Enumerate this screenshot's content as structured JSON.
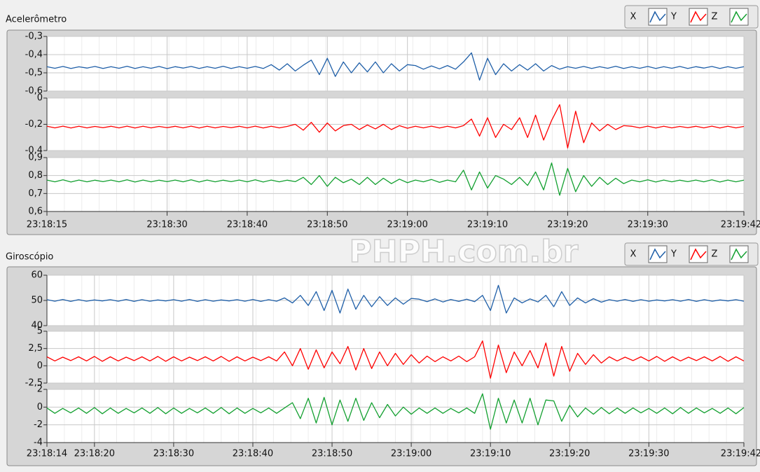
{
  "chart_data": [
    {
      "type": "line",
      "title": "Acelerômetro",
      "x": [
        83895,
        83896,
        83897,
        83898,
        83899,
        83900,
        83901,
        83902,
        83903,
        83904,
        83905,
        83906,
        83907,
        83908,
        83909,
        83910,
        83911,
        83912,
        83913,
        83914,
        83915,
        83916,
        83917,
        83918,
        83919,
        83920,
        83921,
        83922,
        83923,
        83924,
        83925,
        83926,
        83927,
        83928,
        83929,
        83930,
        83931,
        83932,
        83933,
        83934,
        83935,
        83936,
        83937,
        83938,
        83939,
        83940,
        83941,
        83942,
        83943,
        83944,
        83945,
        83946,
        83947,
        83948,
        83949,
        83950,
        83951,
        83952,
        83953,
        83954,
        83955,
        83956,
        83957,
        83958,
        83959,
        83960,
        83961,
        83962,
        83963,
        83964,
        83965,
        83966,
        83967,
        83968,
        83969,
        83970,
        83971,
        83972,
        83973,
        83974,
        83975,
        83976,
        83977,
        83978,
        83979,
        83980,
        83981,
        83982
      ],
      "xlim": [
        83895,
        83982
      ],
      "xticks": [
        {
          "value": 83895,
          "label": "23:18:15"
        },
        {
          "value": 83910,
          "label": "23:18:30"
        },
        {
          "value": 83920,
          "label": "23:18:40"
        },
        {
          "value": 83930,
          "label": "23:18:50"
        },
        {
          "value": 83940,
          "label": "23:19:00"
        },
        {
          "value": 83950,
          "label": "23:19:10"
        },
        {
          "value": 83960,
          "label": "23:19:20"
        },
        {
          "value": 83970,
          "label": "23:19:30"
        },
        {
          "value": 83982,
          "label": "23:19:42"
        }
      ],
      "grid": true,
      "panels": [
        {
          "ylim": [
            -0.6,
            -0.3
          ],
          "yticks": [
            {
              "value": -0.3,
              "label": "-0,3"
            },
            {
              "value": -0.4,
              "label": "-0,4"
            },
            {
              "value": -0.5,
              "label": "-0,5"
            },
            {
              "value": -0.6,
              "label": "-0,6"
            }
          ],
          "series": [
            {
              "name": "X",
              "color": "#1f5fa8",
              "values": [
                -0.466,
                -0.475,
                -0.465,
                -0.476,
                -0.467,
                -0.474,
                -0.465,
                -0.476,
                -0.466,
                -0.475,
                -0.464,
                -0.476,
                -0.466,
                -0.475,
                -0.465,
                -0.477,
                -0.466,
                -0.474,
                -0.465,
                -0.476,
                -0.466,
                -0.475,
                -0.464,
                -0.476,
                -0.466,
                -0.475,
                -0.465,
                -0.476,
                -0.455,
                -0.485,
                -0.45,
                -0.49,
                -0.458,
                -0.43,
                -0.51,
                -0.42,
                -0.52,
                -0.44,
                -0.5,
                -0.445,
                -0.495,
                -0.44,
                -0.5,
                -0.45,
                -0.49,
                -0.455,
                -0.46,
                -0.48,
                -0.462,
                -0.478,
                -0.46,
                -0.48,
                -0.44,
                -0.39,
                -0.54,
                -0.42,
                -0.51,
                -0.45,
                -0.49,
                -0.455,
                -0.485,
                -0.45,
                -0.49,
                -0.46,
                -0.48,
                -0.466,
                -0.475,
                -0.465,
                -0.476,
                -0.466,
                -0.475,
                -0.464,
                -0.476,
                -0.466,
                -0.475,
                -0.465,
                -0.476,
                -0.466,
                -0.475,
                -0.465,
                -0.476,
                -0.466,
                -0.474,
                -0.465,
                -0.476,
                -0.466,
                -0.475,
                -0.466
              ]
            }
          ]
        },
        {
          "ylim": [
            -0.4,
            0
          ],
          "yticks": [
            0,
            {
              "value": -0.2,
              "label": "-0,2"
            },
            {
              "value": -0.4,
              "label": "-0,4"
            }
          ],
          "series": [
            {
              "name": "Y",
              "color": "#ff0000",
              "values": [
                -0.215,
                -0.227,
                -0.214,
                -0.228,
                -0.215,
                -0.227,
                -0.216,
                -0.226,
                -0.215,
                -0.227,
                -0.214,
                -0.228,
                -0.215,
                -0.227,
                -0.216,
                -0.226,
                -0.215,
                -0.227,
                -0.214,
                -0.228,
                -0.215,
                -0.227,
                -0.216,
                -0.226,
                -0.215,
                -0.227,
                -0.214,
                -0.228,
                -0.215,
                -0.227,
                -0.216,
                -0.2,
                -0.245,
                -0.185,
                -0.26,
                -0.19,
                -0.25,
                -0.21,
                -0.2,
                -0.24,
                -0.205,
                -0.235,
                -0.2,
                -0.24,
                -0.21,
                -0.23,
                -0.215,
                -0.227,
                -0.214,
                -0.228,
                -0.215,
                -0.227,
                -0.21,
                -0.16,
                -0.29,
                -0.15,
                -0.3,
                -0.2,
                -0.24,
                -0.15,
                -0.3,
                -0.13,
                -0.32,
                -0.17,
                -0.05,
                -0.38,
                -0.1,
                -0.34,
                -0.19,
                -0.25,
                -0.2,
                -0.24,
                -0.21,
                -0.215,
                -0.227,
                -0.214,
                -0.228,
                -0.215,
                -0.227,
                -0.216,
                -0.226,
                -0.215,
                -0.227,
                -0.214,
                -0.228,
                -0.215,
                -0.227,
                -0.216
              ]
            }
          ]
        },
        {
          "ylim": [
            0.6,
            0.9
          ],
          "yticks": [
            {
              "value": 0.9,
              "label": "0,9"
            },
            {
              "value": 0.8,
              "label": "0,8"
            },
            {
              "value": 0.7,
              "label": "0,7"
            },
            {
              "value": 0.6,
              "label": "0,6"
            }
          ],
          "series": [
            {
              "name": "Z",
              "color": "#13a030",
              "values": [
                0.775,
                0.765,
                0.776,
                0.764,
                0.775,
                0.765,
                0.774,
                0.766,
                0.775,
                0.765,
                0.776,
                0.764,
                0.775,
                0.765,
                0.774,
                0.766,
                0.775,
                0.765,
                0.776,
                0.764,
                0.775,
                0.765,
                0.774,
                0.766,
                0.775,
                0.765,
                0.776,
                0.764,
                0.775,
                0.765,
                0.774,
                0.766,
                0.79,
                0.75,
                0.8,
                0.74,
                0.79,
                0.76,
                0.78,
                0.75,
                0.79,
                0.75,
                0.785,
                0.755,
                0.78,
                0.76,
                0.775,
                0.765,
                0.778,
                0.762,
                0.775,
                0.765,
                0.83,
                0.72,
                0.82,
                0.73,
                0.8,
                0.78,
                0.75,
                0.79,
                0.745,
                0.82,
                0.72,
                0.87,
                0.69,
                0.84,
                0.71,
                0.8,
                0.74,
                0.79,
                0.75,
                0.785,
                0.755,
                0.775,
                0.765,
                0.776,
                0.764,
                0.775,
                0.765,
                0.774,
                0.766,
                0.775,
                0.765,
                0.776,
                0.764,
                0.775,
                0.765,
                0.774
              ]
            }
          ]
        }
      ]
    },
    {
      "type": "line",
      "title": "Giroscópio",
      "x": [
        83894,
        83895,
        83896,
        83897,
        83898,
        83899,
        83900,
        83901,
        83902,
        83903,
        83904,
        83905,
        83906,
        83907,
        83908,
        83909,
        83910,
        83911,
        83912,
        83913,
        83914,
        83915,
        83916,
        83917,
        83918,
        83919,
        83920,
        83921,
        83922,
        83923,
        83924,
        83925,
        83926,
        83927,
        83928,
        83929,
        83930,
        83931,
        83932,
        83933,
        83934,
        83935,
        83936,
        83937,
        83938,
        83939,
        83940,
        83941,
        83942,
        83943,
        83944,
        83945,
        83946,
        83947,
        83948,
        83949,
        83950,
        83951,
        83952,
        83953,
        83954,
        83955,
        83956,
        83957,
        83958,
        83959,
        83960,
        83961,
        83962,
        83963,
        83964,
        83965,
        83966,
        83967,
        83968,
        83969,
        83970,
        83971,
        83972,
        83973,
        83974,
        83975,
        83976,
        83977,
        83978,
        83979,
        83980,
        83981,
        83982
      ],
      "xlim": [
        83894,
        83982
      ],
      "xticks": [
        {
          "value": 83894,
          "label": "23:18:14"
        },
        {
          "value": 83900,
          "label": "23:18:20"
        },
        {
          "value": 83910,
          "label": "23:18:30"
        },
        {
          "value": 83920,
          "label": "23:18:40"
        },
        {
          "value": 83930,
          "label": "23:18:50"
        },
        {
          "value": 83940,
          "label": "23:19:00"
        },
        {
          "value": 83950,
          "label": "23:19:10"
        },
        {
          "value": 83960,
          "label": "23:19:20"
        },
        {
          "value": 83970,
          "label": "23:19:30"
        },
        {
          "value": 83982,
          "label": "23:19:42"
        }
      ],
      "grid": true,
      "panels": [
        {
          "ylim": [
            40,
            60
          ],
          "yticks": [
            60,
            50,
            40
          ],
          "series": [
            {
              "name": "X",
              "color": "#1f5fa8",
              "values": [
                50.3,
                49.7,
                50.4,
                49.6,
                50.3,
                49.7,
                50.2,
                49.8,
                50.3,
                49.7,
                50.4,
                49.6,
                50.3,
                49.7,
                50.2,
                49.8,
                50.3,
                49.7,
                50.4,
                49.6,
                50.3,
                49.7,
                50.2,
                49.8,
                50.3,
                49.7,
                50.4,
                49.6,
                50.3,
                49.7,
                51,
                49,
                52,
                48,
                53.5,
                46,
                54,
                45,
                54.5,
                46.5,
                52,
                47.5,
                51.5,
                48,
                51,
                48.5,
                50.8,
                50.5,
                49.5,
                50.6,
                49.4,
                50.4,
                49.6,
                50.5,
                49.5,
                52,
                46,
                56,
                45,
                51,
                49,
                50.6,
                49.4,
                52,
                47.5,
                53.5,
                48,
                51,
                49,
                50.7,
                49.3,
                50.3,
                49.7,
                50.4,
                49.6,
                50.3,
                49.7,
                50.2,
                49.8,
                50.3,
                49.7,
                50.4,
                49.6,
                50.3,
                49.7,
                50.2,
                49.8,
                50.3,
                49.7
              ]
            }
          ]
        },
        {
          "ylim": [
            -2.5,
            5
          ],
          "yticks": [
            5,
            {
              "value": 2.5,
              "label": "2,5"
            },
            0,
            {
              "value": -2.5,
              "label": "-2,5"
            }
          ],
          "series": [
            {
              "name": "Y",
              "color": "#ff0000",
              "values": [
                1.3,
                0.7,
                1.25,
                0.75,
                1.3,
                0.7,
                1.35,
                0.65,
                1.3,
                0.7,
                1.25,
                0.75,
                1.3,
                0.7,
                1.35,
                0.65,
                1.3,
                0.7,
                1.25,
                0.75,
                1.3,
                0.7,
                1.35,
                0.65,
                1.3,
                0.7,
                1.25,
                0.75,
                1.3,
                0.7,
                2,
                0,
                2.5,
                -0.5,
                2.3,
                -0.3,
                2,
                0.3,
                2.8,
                -0.6,
                2.5,
                -0.4,
                2,
                0,
                1.8,
                0.2,
                1.6,
                0.4,
                1.4,
                0.6,
                1.3,
                0.7,
                1.4,
                0.6,
                1.3,
                3.6,
                -1.8,
                3,
                -1,
                2,
                0,
                2.2,
                -0.3,
                3.3,
                -1.5,
                2.8,
                -0.8,
                1.8,
                0.2,
                1.6,
                0.4,
                1.3,
                0.7,
                1.25,
                0.75,
                1.3,
                0.7,
                1.35,
                0.65,
                1.3,
                0.7,
                1.25,
                0.75,
                1.3,
                0.7,
                1.35,
                0.65,
                1.3,
                0.7
              ]
            }
          ]
        },
        {
          "ylim": [
            -4,
            2
          ],
          "yticks": [
            2,
            0,
            -2,
            -4
          ],
          "series": [
            {
              "name": "Z",
              "color": "#13a030",
              "values": [
                -0.1,
                -0.7,
                -0.15,
                -0.65,
                -0.1,
                -0.7,
                -0.05,
                -0.75,
                -0.1,
                -0.7,
                -0.15,
                -0.65,
                -0.1,
                -0.7,
                -0.05,
                -0.75,
                -0.1,
                -0.7,
                -0.15,
                -0.65,
                -0.1,
                -0.7,
                -0.05,
                -0.75,
                -0.1,
                -0.7,
                -0.15,
                -0.65,
                -0.1,
                -0.7,
                -0.1,
                0.5,
                -1.3,
                1,
                -1.8,
                1.1,
                -2,
                0.8,
                -1.6,
                1,
                -1.5,
                0.5,
                -1.2,
                0.3,
                -1,
                0,
                -0.8,
                -0.1,
                -0.7,
                -0.1,
                -0.7,
                -0.15,
                -0.65,
                -0.1,
                -0.7,
                1.5,
                -2.5,
                1,
                -1.8,
                0.8,
                -1.8,
                1,
                -2,
                0.8,
                0.7,
                -1.6,
                0.2,
                -1.1,
                -0.1,
                -0.8,
                -0.05,
                -0.75,
                -0.1,
                -0.7,
                -0.1,
                -0.65,
                -0.15,
                -0.7,
                -0.1,
                -0.75,
                -0.05,
                -0.7,
                -0.1,
                -0.65,
                -0.15,
                -0.7,
                -0.1,
                -0.75,
                -0.05
              ]
            }
          ]
        }
      ]
    }
  ],
  "watermark": "PHPH.com.br"
}
